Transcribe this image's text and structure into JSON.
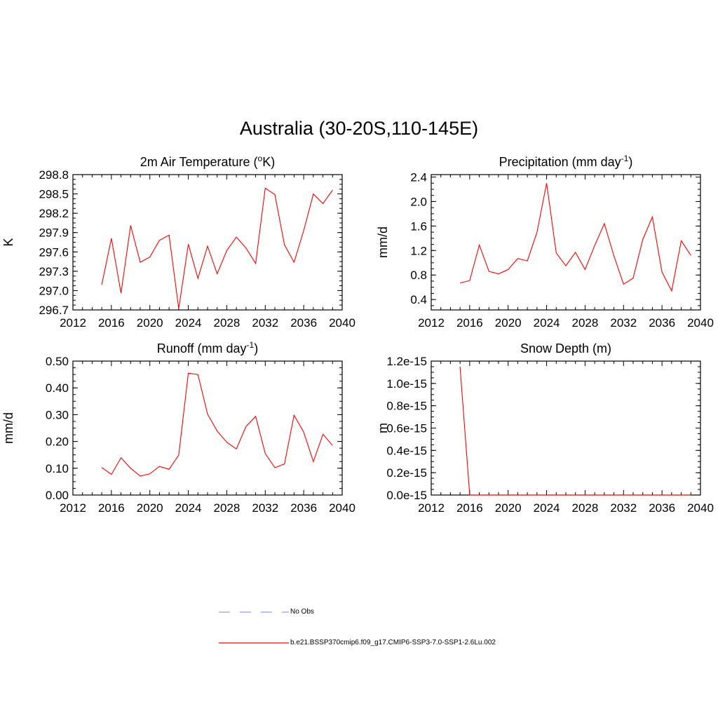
{
  "main_title": "Australia (30-20S,110-145E)",
  "legend": {
    "items": [
      {
        "label": "No Obs",
        "color": "#9a9ae6",
        "style": "dashed"
      },
      {
        "label": "b.e21.BSSP370cmip6.f09_g17.CMIP6-SSP3-7.0-SSP1-2.6Lu.002",
        "color": "#ff0000",
        "style": "solid"
      }
    ]
  },
  "chart_data": [
    {
      "type": "line",
      "title": "2m Air Temperature (",
      "title_sup": "o",
      "title_tail": "K)",
      "ylabel": "K",
      "xlim": [
        2012,
        2040
      ],
      "ylim": [
        296.7,
        298.8
      ],
      "xticks": [
        2012,
        2016,
        2020,
        2024,
        2028,
        2032,
        2036,
        2040
      ],
      "yticks": [
        "296.7",
        "297.0",
        "297.3",
        "297.6",
        "297.9",
        "298.2",
        "298.5",
        "298.8"
      ],
      "yvals": [
        296.7,
        297.0,
        297.3,
        297.6,
        297.9,
        298.2,
        298.5,
        298.8
      ],
      "series": [
        {
          "color": "#ff0000",
          "x": [
            2015,
            2016,
            2017,
            2018,
            2019,
            2020,
            2021,
            2022,
            2023,
            2024,
            2025,
            2026,
            2027,
            2028,
            2029,
            2030,
            2031,
            2032,
            2033,
            2034,
            2035,
            2036,
            2037,
            2038,
            2039
          ],
          "y": [
            297.09,
            297.81,
            296.96,
            298.01,
            297.44,
            297.52,
            297.78,
            297.86,
            296.72,
            297.72,
            297.19,
            297.69,
            297.26,
            297.62,
            297.83,
            297.66,
            297.42,
            298.59,
            298.49,
            297.71,
            297.44,
            297.93,
            298.5,
            298.35,
            298.56
          ]
        }
      ]
    },
    {
      "type": "line",
      "title": "Precipitation (mm day",
      "title_sup": "-1",
      "title_tail": ")",
      "ylabel": "mm/d",
      "xlim": [
        2012,
        2040
      ],
      "ylim": [
        0.23,
        2.44
      ],
      "xticks": [
        2012,
        2016,
        2020,
        2024,
        2028,
        2032,
        2036,
        2040
      ],
      "yticks": [
        "0.4",
        "0.8",
        "1.2",
        "1.6",
        "2.0",
        "2.4"
      ],
      "yvals": [
        0.4,
        0.8,
        1.2,
        1.6,
        2.0,
        2.4
      ],
      "series": [
        {
          "color": "#ff0000",
          "x": [
            2015,
            2016,
            2017,
            2018,
            2019,
            2020,
            2021,
            2022,
            2023,
            2024,
            2025,
            2026,
            2027,
            2028,
            2029,
            2030,
            2031,
            2032,
            2033,
            2034,
            2035,
            2036,
            2037,
            2038,
            2039
          ],
          "y": [
            0.67,
            0.71,
            1.29,
            0.86,
            0.82,
            0.89,
            1.07,
            1.03,
            1.5,
            2.3,
            1.16,
            0.95,
            1.17,
            0.89,
            1.28,
            1.64,
            1.11,
            0.65,
            0.75,
            1.38,
            1.75,
            0.85,
            0.54,
            1.36,
            1.12
          ]
        }
      ]
    },
    {
      "type": "line",
      "title": "Runoff (mm day",
      "title_sup": "-1",
      "title_tail": ")",
      "ylabel": "mm/d",
      "xlim": [
        2012,
        2040
      ],
      "ylim": [
        0.0,
        0.5
      ],
      "xticks": [
        2012,
        2016,
        2020,
        2024,
        2028,
        2032,
        2036,
        2040
      ],
      "yticks": [
        "0.00",
        "0.10",
        "0.20",
        "0.30",
        "0.40",
        "0.50"
      ],
      "yvals": [
        0.0,
        0.1,
        0.2,
        0.3,
        0.4,
        0.5
      ],
      "series": [
        {
          "color": "#ff0000",
          "x": [
            2015,
            2016,
            2017,
            2018,
            2019,
            2020,
            2021,
            2022,
            2023,
            2024,
            2025,
            2026,
            2027,
            2028,
            2029,
            2030,
            2031,
            2032,
            2033,
            2034,
            2035,
            2036,
            2037,
            2038,
            2039
          ],
          "y": [
            0.103,
            0.077,
            0.139,
            0.1,
            0.071,
            0.079,
            0.107,
            0.096,
            0.149,
            0.455,
            0.45,
            0.302,
            0.239,
            0.197,
            0.172,
            0.256,
            0.294,
            0.155,
            0.102,
            0.116,
            0.298,
            0.235,
            0.125,
            0.227,
            0.185
          ]
        }
      ]
    },
    {
      "type": "line",
      "title": "Snow Depth (m)",
      "title_sup": "",
      "title_tail": "",
      "ylabel": "m",
      "xlim": [
        2012,
        2040
      ],
      "ylim": [
        0.0,
        1.2e-15
      ],
      "xticks": [
        2012,
        2016,
        2020,
        2024,
        2028,
        2032,
        2036,
        2040
      ],
      "yticks": [
        "0.0e-15",
        "0.2e-15",
        "0.4e-15",
        "0.6e-15",
        "0.8e-15",
        "1.0e-15",
        "1.2e-15"
      ],
      "yvals": [
        0.0,
        2e-16,
        4e-16,
        6e-16,
        8e-16,
        1e-15,
        1.2e-15
      ],
      "series": [
        {
          "color": "#ff0000",
          "x": [
            2015,
            2016,
            2017,
            2018,
            2019,
            2020,
            2021,
            2022,
            2023,
            2024,
            2025,
            2026,
            2027,
            2028,
            2029,
            2030,
            2031,
            2032,
            2033,
            2034,
            2035,
            2036,
            2037,
            2038,
            2039
          ],
          "y": [
            1.15e-15,
            0,
            0,
            0,
            0,
            0,
            0,
            0,
            0,
            0,
            0,
            0,
            0,
            0,
            0,
            0,
            0,
            0,
            0,
            0,
            0,
            0,
            0,
            0,
            0
          ]
        }
      ]
    }
  ]
}
